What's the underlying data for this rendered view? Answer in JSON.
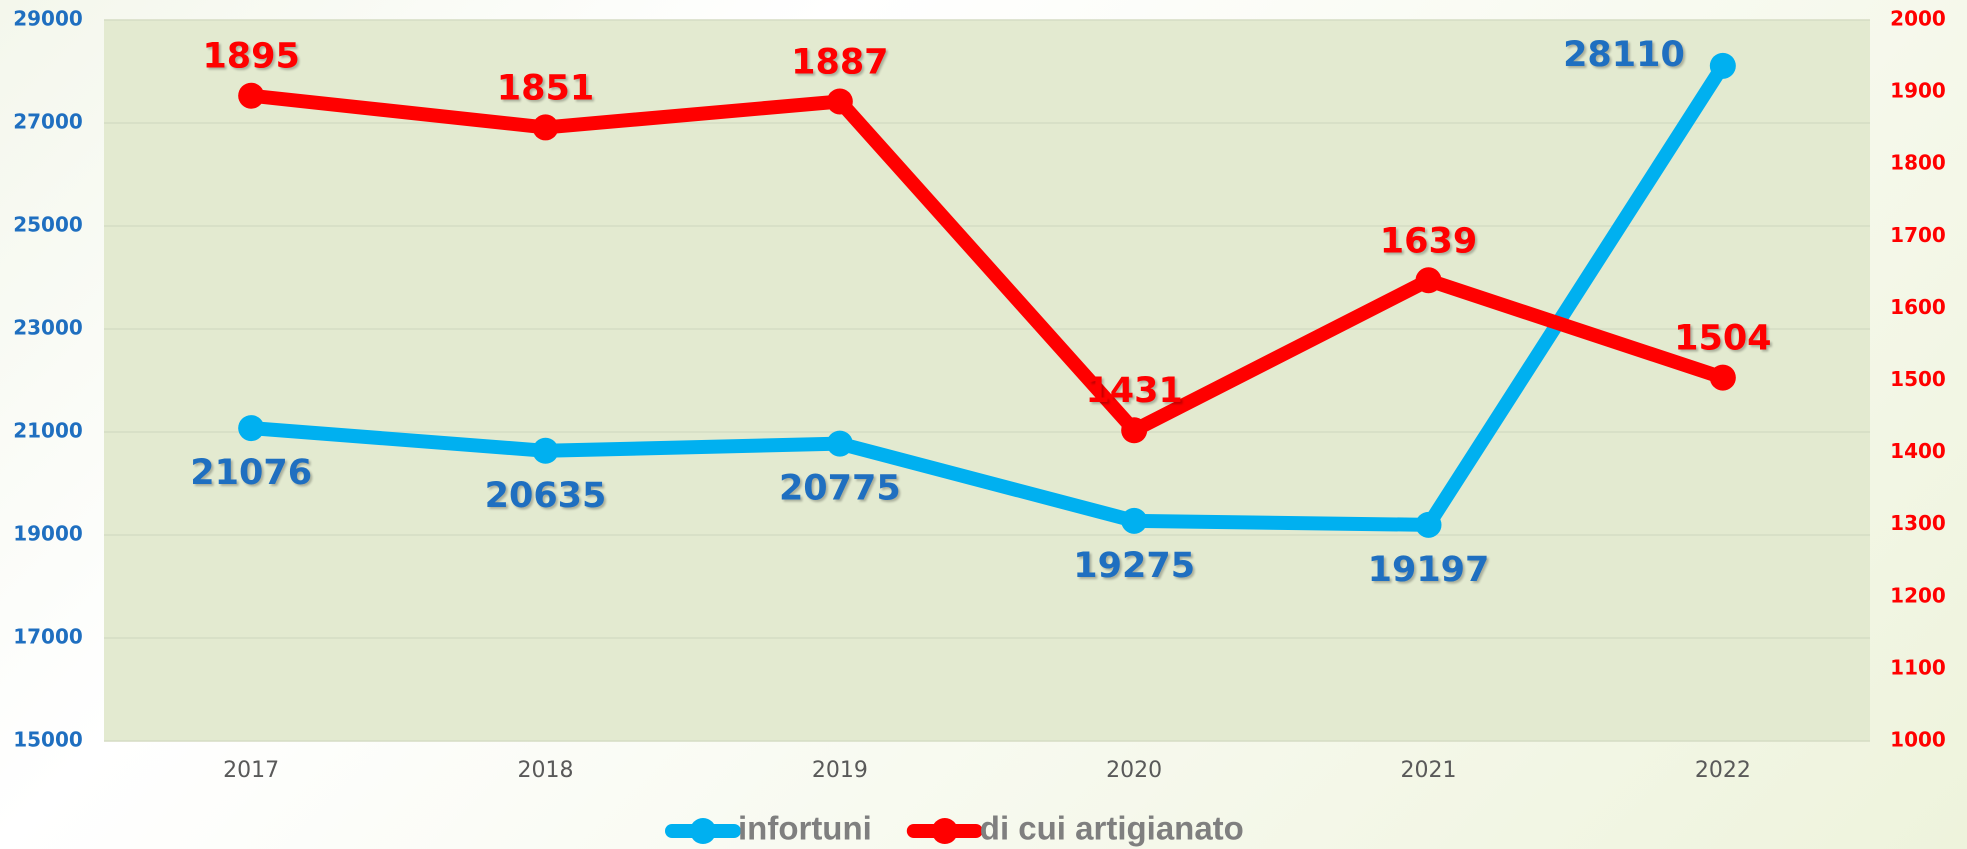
{
  "chart_data": {
    "type": "line",
    "categories": [
      "2017",
      "2018",
      "2019",
      "2020",
      "2021",
      "2022"
    ],
    "series": [
      {
        "name": "infortuni",
        "color": "#00b0f0",
        "label_color": "#1f6fc0",
        "values": [
          21076,
          20635,
          20775,
          19275,
          19197,
          28110
        ]
      },
      {
        "name": "di cui artigianato",
        "color": "#ff0000",
        "label_color": "#ff0000",
        "axis": "y2",
        "values": [
          1895,
          1851,
          1887,
          1431,
          1639,
          1504
        ]
      }
    ],
    "ylim": [
      15000,
      29000
    ],
    "yticks": [
      15000,
      17000,
      19000,
      21000,
      23000,
      25000,
      27000,
      29000
    ],
    "y2lim": [
      1000,
      2000
    ],
    "y2ticks": [
      1000,
      1100,
      1200,
      1300,
      1400,
      1500,
      1600,
      1700,
      1800,
      1900,
      2000
    ],
    "grid": true,
    "legend": "bottom"
  }
}
